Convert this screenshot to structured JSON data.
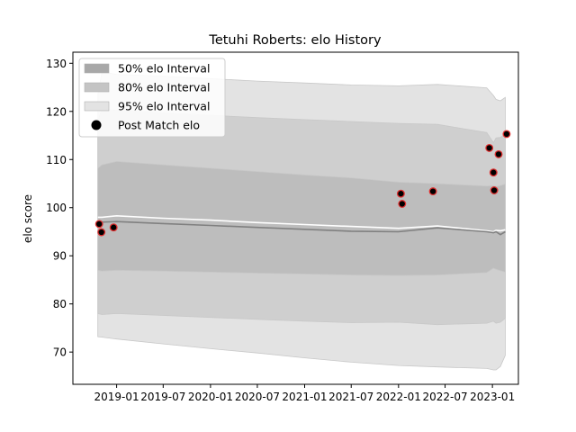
{
  "chart_data": {
    "type": "line",
    "title": "Tetuhi Roberts: elo History",
    "xlabel": "",
    "ylabel": "elo score",
    "x_type": "date",
    "xlim": [
      "2018-07-15",
      "2023-04-12"
    ],
    "ylim": [
      63.3,
      132.3
    ],
    "x_ticks": [
      "2019-01",
      "2019-07",
      "2020-01",
      "2020-07",
      "2021-01",
      "2021-07",
      "2022-01",
      "2022-07",
      "2023-01"
    ],
    "y_ticks": [
      70,
      80,
      90,
      100,
      110,
      120,
      130
    ],
    "grid": false,
    "legend_position": "top-left",
    "legend": [
      {
        "label": "50% elo Interval",
        "color": "#a8a8a8",
        "kind": "patch"
      },
      {
        "label": "80% elo Interval",
        "color": "#c4c4c4",
        "kind": "patch"
      },
      {
        "label": "95% elo Interval",
        "color": "#e3e3e3",
        "kind": "patch"
      },
      {
        "label": "Post Match elo",
        "color": "#000000",
        "kind": "marker"
      }
    ],
    "dates": [
      "2018-10-20",
      "2018-11-05",
      "2019-01-01",
      "2019-07-01",
      "2020-01-01",
      "2020-07-01",
      "2021-01-01",
      "2021-07-01",
      "2022-01-01",
      "2022-06-01",
      "2022-12-10",
      "2023-01-05",
      "2023-01-15",
      "2023-02-01",
      "2023-02-20"
    ],
    "bands": [
      {
        "name": "95% elo Interval",
        "color": "#e3e3e3",
        "lower": [
          73.2,
          73.1,
          72.7,
          71.7,
          70.7,
          69.8,
          68.8,
          67.9,
          67.2,
          66.9,
          66.6,
          66.3,
          66.3,
          67.0,
          69.3
        ],
        "upper": [
          123.5,
          128.2,
          127.7,
          127.3,
          126.8,
          126.3,
          125.9,
          125.5,
          125.3,
          125.6,
          124.9,
          123.3,
          122.5,
          122.2,
          122.9
        ]
      },
      {
        "name": "80% elo Interval",
        "color": "#cfcfcf",
        "lower": [
          78.0,
          77.8,
          78.0,
          77.6,
          77.2,
          76.8,
          76.4,
          76.1,
          76.2,
          75.7,
          76.0,
          76.4,
          76.0,
          76.2,
          77.0
        ],
        "upper": [
          118.0,
          120.5,
          120.2,
          119.7,
          119.2,
          118.7,
          118.3,
          117.9,
          117.5,
          117.3,
          115.6,
          113.5,
          114.5,
          114.6,
          115.3
        ]
      },
      {
        "name": "50% elo Interval",
        "color": "#bdbdbd",
        "lower": [
          87.0,
          86.8,
          87.0,
          86.8,
          86.6,
          86.4,
          86.2,
          86.0,
          85.9,
          86.0,
          86.5,
          87.4,
          87.2,
          86.9,
          86.6
        ],
        "upper": [
          108.2,
          108.9,
          109.6,
          108.9,
          108.2,
          107.5,
          106.8,
          106.2,
          105.3,
          105.0,
          104.5,
          104.6,
          104.4,
          104.6,
          104.9
        ]
      }
    ],
    "series": [
      {
        "kind": "line",
        "color": "#ffffff",
        "values": [
          98.0,
          98.0,
          98.3,
          97.8,
          97.4,
          96.9,
          96.5,
          96.1,
          95.7,
          96.2,
          95.2,
          95.0,
          95.3,
          95.2,
          95.4
        ]
      },
      {
        "kind": "line",
        "color": "#808080",
        "values": [
          96.9,
          97.0,
          97.1,
          96.7,
          96.3,
          95.9,
          95.5,
          95.1,
          95.0,
          95.8,
          95.0,
          94.8,
          95.0,
          94.4,
          95.0
        ]
      }
    ],
    "points": [
      {
        "name": "Post Match elo",
        "color": "#000000",
        "edge_color": "#e03030",
        "x": [
          "2018-10-25",
          "2018-11-03",
          "2018-12-20",
          "2022-01-10",
          "2022-01-15",
          "2022-05-15",
          "2022-12-20",
          "2023-01-05",
          "2023-01-08",
          "2023-01-25",
          "2023-02-25"
        ],
        "y": [
          96.6,
          94.9,
          95.9,
          102.9,
          100.8,
          103.4,
          112.4,
          107.3,
          103.6,
          111.1,
          115.3
        ]
      }
    ]
  }
}
